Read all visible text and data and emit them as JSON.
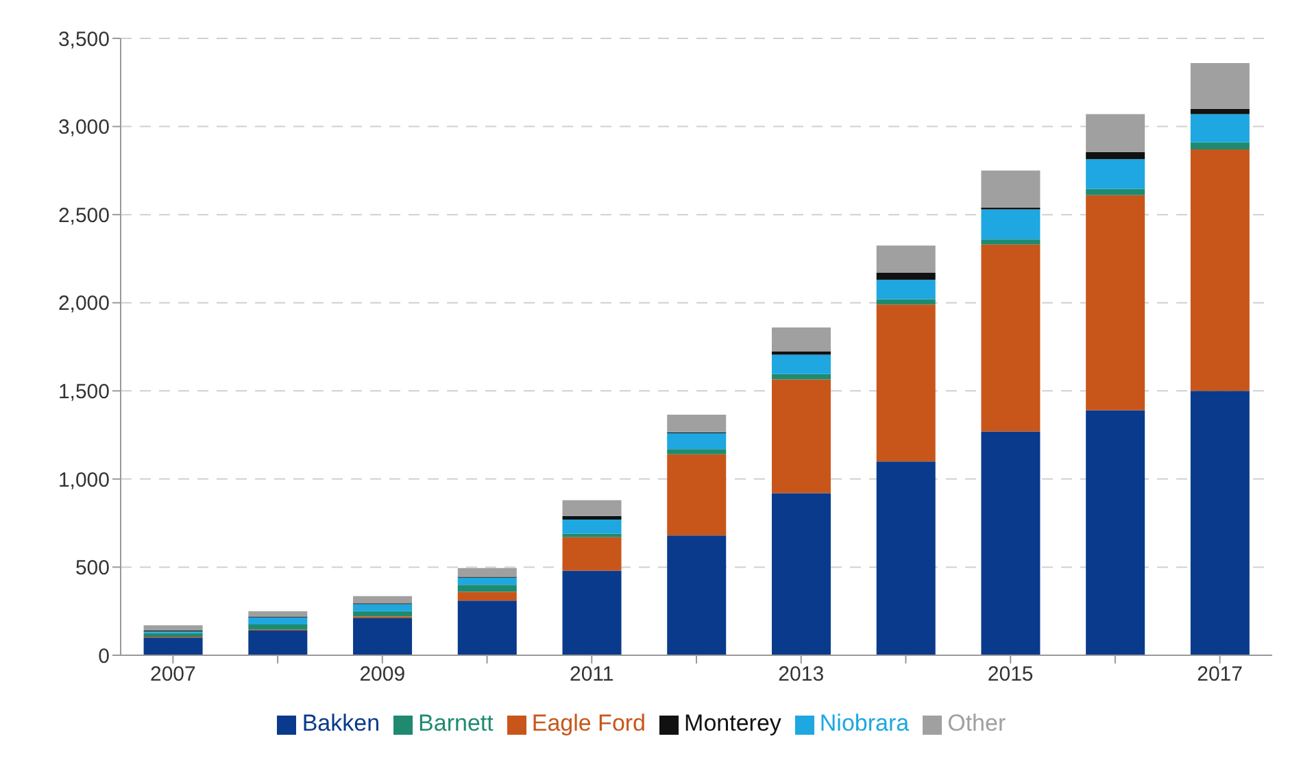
{
  "chart_data": {
    "type": "bar",
    "stacked": true,
    "categories": [
      "2007",
      null,
      "2009",
      null,
      "2011",
      null,
      "2013",
      null,
      "2015",
      null,
      "2017"
    ],
    "series": [
      {
        "name": "Bakken",
        "color": "#0a3a8c",
        "values": [
          100,
          140,
          210,
          310,
          480,
          680,
          920,
          1100,
          1270,
          1390,
          1500
        ]
      },
      {
        "name": "Eagle Ford",
        "color": "#c8561a",
        "values": [
          5,
          5,
          10,
          50,
          190,
          460,
          645,
          890,
          1060,
          1220,
          1370
        ]
      },
      {
        "name": "Barnett",
        "color": "#1f8a70",
        "values": [
          20,
          30,
          30,
          40,
          20,
          30,
          30,
          30,
          30,
          35,
          40
        ]
      },
      {
        "name": "Niobrara",
        "color": "#1ea7e0",
        "values": [
          10,
          40,
          40,
          40,
          80,
          90,
          110,
          110,
          170,
          170,
          160
        ]
      },
      {
        "name": "Monterey",
        "color": "#111111",
        "values": [
          5,
          5,
          5,
          5,
          20,
          5,
          20,
          40,
          10,
          40,
          30
        ]
      },
      {
        "name": "Other",
        "color": "#a0a0a0",
        "values": [
          30,
          30,
          40,
          50,
          90,
          100,
          135,
          155,
          210,
          215,
          260
        ]
      }
    ],
    "ylim": [
      0,
      3500
    ],
    "yticks": [
      0,
      {
        "value": 500,
        "label": "500"
      },
      {
        "value": 1000,
        "label": "1,000"
      },
      {
        "value": 1500,
        "label": "1,500"
      },
      {
        "value": 2000,
        "label": "2,000"
      },
      {
        "value": 2500,
        "label": "2,500"
      },
      {
        "value": 3000,
        "label": "3,000"
      },
      {
        "value": 3500,
        "label": "3,500"
      }
    ],
    "grid": "y",
    "legend": "bottom"
  }
}
